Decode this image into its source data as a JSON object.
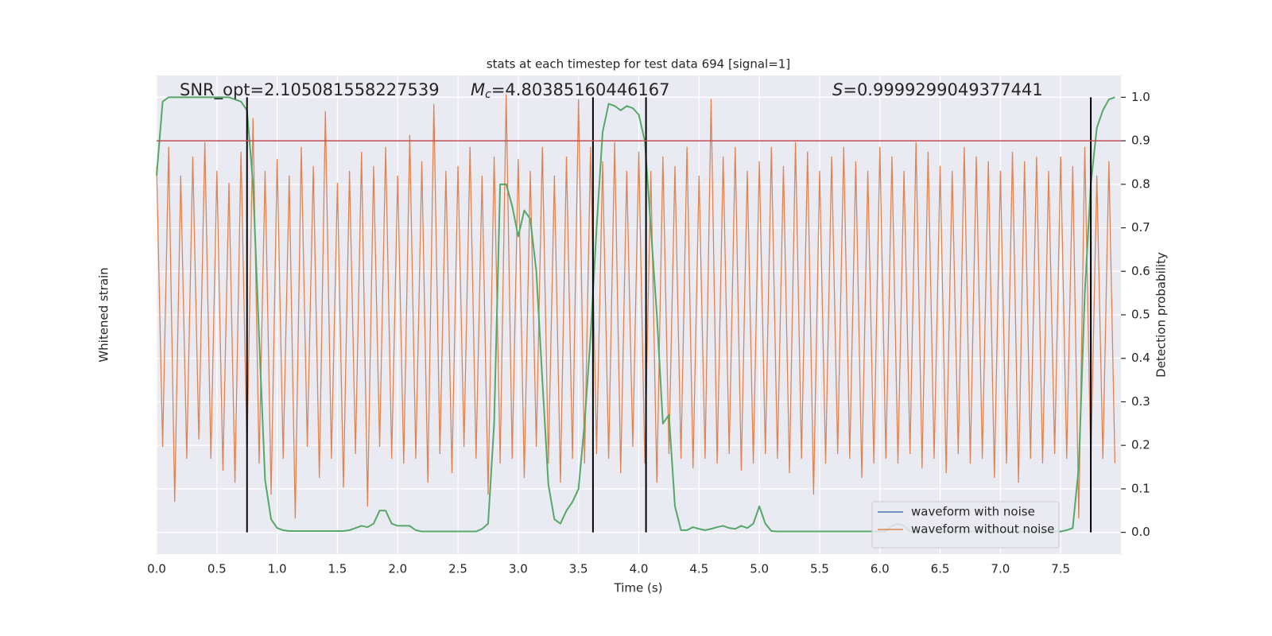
{
  "chart_data": {
    "type": "line",
    "title": "stats at each timestep for test data 694 [signal=1]",
    "xlabel": "Time (s)",
    "ylabel": "Whitened strain",
    "y2label": "Detection probability",
    "annotations": [
      {
        "text": "SNR_opt=2.105081558227539"
      },
      {
        "symbol": "M",
        "subscript": "c",
        "text": "=4.80385160446167"
      },
      {
        "symbol": "S",
        "text": "=0.9999299049377441"
      }
    ],
    "xlim": [
      0,
      8.0
    ],
    "ylim": [
      -1,
      1
    ],
    "y2lim": [
      -0.05,
      1.05
    ],
    "xticks": [
      {
        "value": 0,
        "label": "0.0"
      },
      0.5,
      {
        "value": 1,
        "label": "1.0"
      },
      1.5,
      {
        "value": 2,
        "label": "2.0"
      },
      2.5,
      {
        "value": 3,
        "label": "3.0"
      },
      3.5,
      {
        "value": 4,
        "label": "4.0"
      },
      4.5,
      {
        "value": 5,
        "label": "5.0"
      },
      5.5,
      {
        "value": 6,
        "label": "6.0"
      },
      6.5,
      {
        "value": 7,
        "label": "7.0"
      },
      7.5
    ],
    "y2ticks": [
      {
        "value": 0,
        "label": "0.0"
      },
      0.1,
      0.2,
      0.3,
      0.4,
      0.5,
      0.6,
      0.7,
      0.8,
      0.9,
      {
        "value": 1,
        "label": "1.0"
      }
    ],
    "grid": true,
    "legend": "lower right",
    "vlines": {
      "x": [
        0.75,
        3.62,
        4.06,
        7.75
      ],
      "ymin": 0,
      "ymax": 1,
      "axis": "y2",
      "color": "#000000"
    },
    "threshold": {
      "y": 0.9,
      "axis": "y2",
      "color": "#c44e52"
    },
    "x": [
      0,
      0.05,
      0.1,
      0.15,
      0.2,
      0.25,
      0.3,
      0.35,
      0.4,
      0.45,
      0.5,
      0.55,
      0.6,
      0.65,
      0.7,
      0.75,
      0.8,
      0.85,
      0.9,
      0.95,
      1.0,
      1.05,
      1.1,
      1.15,
      1.2,
      1.25,
      1.3,
      1.35,
      1.4,
      1.45,
      1.5,
      1.55,
      1.6,
      1.65,
      1.7,
      1.75,
      1.8,
      1.85,
      1.9,
      1.95,
      2.0,
      2.05,
      2.1,
      2.15,
      2.2,
      2.25,
      2.3,
      2.35,
      2.4,
      2.45,
      2.5,
      2.55,
      2.6,
      2.65,
      2.7,
      2.75,
      2.8,
      2.85,
      2.9,
      2.95,
      3.0,
      3.05,
      3.1,
      3.15,
      3.2,
      3.25,
      3.3,
      3.35,
      3.4,
      3.45,
      3.5,
      3.55,
      3.6,
      3.65,
      3.7,
      3.75,
      3.8,
      3.85,
      3.9,
      3.95,
      4.0,
      4.05,
      4.1,
      4.15,
      4.2,
      4.25,
      4.3,
      4.35,
      4.4,
      4.45,
      4.5,
      4.55,
      4.6,
      4.65,
      4.7,
      4.75,
      4.8,
      4.85,
      4.9,
      4.95,
      5.0,
      5.05,
      5.1,
      5.15,
      5.2,
      5.25,
      5.3,
      5.35,
      5.4,
      5.45,
      5.5,
      5.55,
      5.6,
      5.65,
      5.7,
      5.75,
      5.8,
      5.85,
      5.9,
      5.95,
      6.0,
      6.05,
      6.1,
      6.15,
      6.2,
      6.25,
      6.3,
      6.35,
      6.4,
      6.45,
      6.5,
      6.55,
      6.6,
      6.65,
      6.7,
      6.75,
      6.8,
      6.85,
      6.9,
      6.95,
      7.0,
      7.05,
      7.1,
      7.15,
      7.2,
      7.25,
      7.3,
      7.35,
      7.4,
      7.45,
      7.5,
      7.55,
      7.6,
      7.65,
      7.7,
      7.75,
      7.8,
      7.85,
      7.9,
      7.95
    ],
    "series": [
      {
        "name": "waveform with noise",
        "color": "#4c72b0"
      },
      {
        "name": "waveform without noise",
        "color": "#dd8452",
        "axis": "y",
        "values": [
          0.62,
          -0.55,
          0.7,
          -0.78,
          0.58,
          -0.6,
          0.66,
          -0.52,
          0.72,
          -0.6,
          0.6,
          -0.65,
          0.55,
          -0.7,
          0.68,
          -0.58,
          0.82,
          -0.62,
          0.6,
          -0.75,
          0.65,
          -0.6,
          0.58,
          -0.85,
          0.7,
          -0.55,
          0.62,
          -0.68,
          0.85,
          -0.6,
          0.55,
          -0.72,
          0.6,
          -0.58,
          0.68,
          -0.8,
          0.62,
          -0.55,
          0.7,
          -0.6,
          0.58,
          -0.62,
          0.75,
          -0.6,
          0.64,
          -0.7,
          0.88,
          -0.58,
          0.6,
          -0.66,
          0.62,
          -0.55,
          0.7,
          -0.6,
          0.58,
          -0.75,
          0.66,
          -0.62,
          0.92,
          -0.6,
          0.65,
          -0.68,
          0.6,
          -0.55,
          0.7,
          -0.62,
          0.58,
          -0.7,
          0.66,
          -0.6,
          0.9,
          -0.62,
          0.7,
          -0.58,
          0.64,
          -0.6,
          0.72,
          -0.66,
          0.6,
          -0.55,
          0.68,
          -0.62,
          0.6,
          -0.7,
          0.66,
          -0.58,
          0.62,
          -0.6,
          0.7,
          -0.64,
          0.58,
          -0.6,
          0.9,
          -0.62,
          0.66,
          -0.58,
          0.7,
          -0.65,
          0.6,
          -0.62,
          0.64,
          -0.58,
          0.7,
          -0.6,
          0.62,
          -0.66,
          0.72,
          -0.6,
          0.68,
          -0.75,
          0.6,
          -0.62,
          0.66,
          -0.58,
          0.7,
          -0.6,
          0.64,
          -0.68,
          0.6,
          -0.62,
          0.7,
          -0.6,
          0.66,
          -0.62,
          0.6,
          -0.58,
          0.72,
          -0.64,
          0.68,
          -0.6,
          0.62,
          -0.66,
          0.6,
          -0.58,
          0.7,
          -0.62,
          0.66,
          -0.6,
          0.64,
          -0.68,
          0.6,
          -0.62,
          0.68,
          -0.7,
          0.64,
          -0.6,
          0.66,
          -0.62,
          0.6,
          -0.58,
          0.66,
          -0.6,
          0.62,
          -0.85,
          0.7,
          -0.62,
          0.58,
          -0.6,
          0.64,
          -0.62
        ]
      },
      {
        "color": "#55a868",
        "axis": "y2",
        "values": [
          0.82,
          0.99,
          1.0,
          1.0,
          1.0,
          1.0,
          1.0,
          1.0,
          1.0,
          1.0,
          1.0,
          1.0,
          1.0,
          0.995,
          0.99,
          0.97,
          0.8,
          0.45,
          0.12,
          0.03,
          0.01,
          0.005,
          0.003,
          0.003,
          0.003,
          0.003,
          0.003,
          0.003,
          0.003,
          0.003,
          0.003,
          0.003,
          0.005,
          0.01,
          0.015,
          0.012,
          0.02,
          0.05,
          0.05,
          0.02,
          0.015,
          0.015,
          0.015,
          0.005,
          0.002,
          0.002,
          0.002,
          0.002,
          0.002,
          0.002,
          0.002,
          0.002,
          0.002,
          0.002,
          0.008,
          0.02,
          0.25,
          0.8,
          0.8,
          0.75,
          0.68,
          0.74,
          0.72,
          0.6,
          0.35,
          0.11,
          0.03,
          0.02,
          0.05,
          0.07,
          0.1,
          0.25,
          0.45,
          0.7,
          0.92,
          0.985,
          0.98,
          0.97,
          0.98,
          0.975,
          0.96,
          0.9,
          0.7,
          0.5,
          0.25,
          0.27,
          0.06,
          0.005,
          0.005,
          0.012,
          0.008,
          0.005,
          0.008,
          0.012,
          0.015,
          0.01,
          0.008,
          0.015,
          0.01,
          0.02,
          0.06,
          0.02,
          0.003,
          0.002,
          0.002,
          0.002,
          0.002,
          0.002,
          0.002,
          0.002,
          0.002,
          0.002,
          0.002,
          0.002,
          0.002,
          0.002,
          0.002,
          0.002,
          0.002,
          0.002,
          0.002,
          0.002,
          0.015,
          0.02,
          0.015,
          0.002,
          0.002,
          0.002,
          0.002,
          0.002,
          0.002,
          0.002,
          0.002,
          0.002,
          0.002,
          0.002,
          0.002,
          0.002,
          0.002,
          0.002,
          0.002,
          0.002,
          0.002,
          0.002,
          0.002,
          0.002,
          0.002,
          0.002,
          0.002,
          0.002,
          0.002,
          0.005,
          0.01,
          0.15,
          0.55,
          0.8,
          0.93,
          0.97,
          0.995,
          1.0
        ]
      }
    ]
  }
}
